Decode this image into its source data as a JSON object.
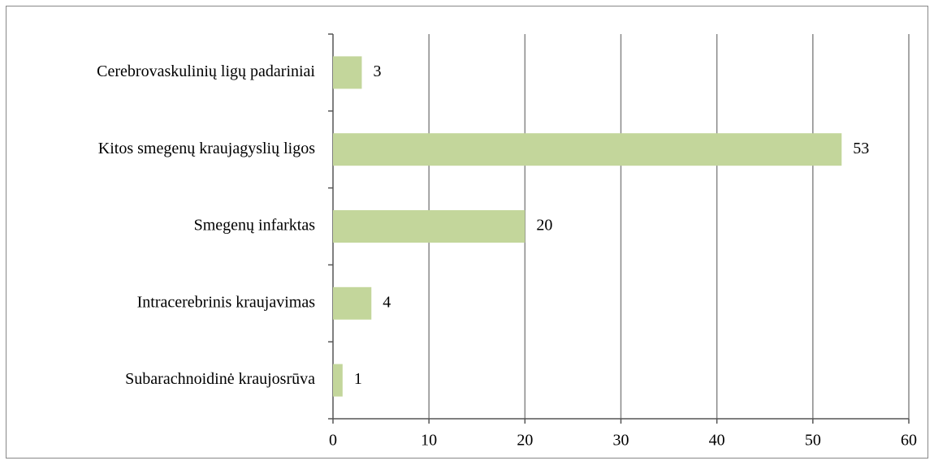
{
  "chart_data": {
    "type": "barh",
    "categories": [
      "Cerebrovaskulinių ligų padariniai",
      "Kitos smegenų kraujagyslių ligos",
      "Smegenų infarktas",
      "Intracerebrinis kraujavimas",
      "Subarachnoidinė kraujosrūva"
    ],
    "values": [
      3,
      53,
      20,
      4,
      1
    ],
    "color": "#c3d69b",
    "xlim": [
      0,
      60
    ],
    "xticks": [
      0,
      10,
      20,
      30,
      40,
      50,
      60
    ],
    "grid": true
  }
}
